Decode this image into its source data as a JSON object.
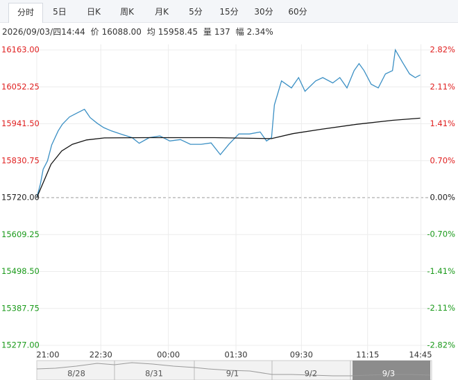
{
  "tabs": [
    "分时",
    "5日",
    "日K",
    "周K",
    "月K",
    "5分",
    "15分",
    "30分",
    "60分"
  ],
  "info": {
    "date": "2026/09/03/四14:44",
    "price_label": "价",
    "price": "16088.00",
    "avg_label": "均",
    "avg": "15958.45",
    "volume_label": "量",
    "volume": "137",
    "range_label": "幅",
    "range": "2.34%"
  },
  "navigator": {
    "dates": [
      "8/28",
      "8/31",
      "9/1",
      "9/2",
      "9/3"
    ]
  },
  "chart_data": {
    "type": "line",
    "grid": true,
    "up_color": "#e02020",
    "down_color": "#1a9a1a",
    "flat_color": "#222",
    "ylim": [
      15277,
      16163
    ],
    "yticks": [
      {
        "value": 16163,
        "label": "16163.00"
      },
      {
        "value": 16052.25,
        "label": "16052.25"
      },
      {
        "value": 15941.5,
        "label": "15941.50"
      },
      {
        "value": 15830.75,
        "label": "15830.75"
      },
      {
        "value": 15720,
        "label": "15720.00"
      },
      {
        "value": 15609.25,
        "label": "15609.25"
      },
      {
        "value": 15498.5,
        "label": "15498.50"
      },
      {
        "value": 15387.75,
        "label": "15387.75"
      },
      {
        "value": 15277,
        "label": "15277.00"
      }
    ],
    "y2lim": [
      -2.82,
      2.82
    ],
    "y2ticks": [
      {
        "value": 2.82,
        "label": "2.82%"
      },
      {
        "value": 2.11,
        "label": "2.11%"
      },
      {
        "value": 1.41,
        "label": "1.41%"
      },
      {
        "value": 0.7,
        "label": "0.70%"
      },
      {
        "value": 0,
        "label": "0.00%"
      },
      {
        "value": -0.7,
        "label": "-0.70%"
      },
      {
        "value": -1.41,
        "label": "-1.41%"
      },
      {
        "value": -2.11,
        "label": "-2.11%"
      },
      {
        "value": -2.82,
        "label": "-2.82%"
      }
    ],
    "xlim": [
      0,
      555
    ],
    "xticks": [
      {
        "value": 0,
        "label": "21:00"
      },
      {
        "value": 90,
        "label": "22:30"
      },
      {
        "value": 185,
        "label": "00:00"
      },
      {
        "value": 280,
        "label": "01:30"
      },
      {
        "value": 372,
        "label": "09:30"
      },
      {
        "value": 465,
        "label": "11:15"
      },
      {
        "value": 540,
        "label": "14:45"
      }
    ],
    "series": [
      {
        "name": "价",
        "color": "#3a8fc4",
        "x": [
          0,
          5,
          9,
          15,
          21,
          30,
          36,
          46,
          55,
          67,
          75,
          85,
          94,
          105,
          119,
          134,
          144,
          158,
          173,
          187,
          202,
          216,
          231,
          245,
          258,
          270,
          284,
          299,
          314,
          323,
          330,
          334,
          344,
          358,
          368,
          377,
          392,
          402,
          416,
          426,
          436,
          446,
          453,
          460,
          470,
          480,
          490,
          500,
          504,
          514,
          524,
          532,
          539
        ],
        "values": [
          15720,
          15760,
          15805,
          15830,
          15878,
          15920,
          15940,
          15962,
          15972,
          15985,
          15960,
          15943,
          15930,
          15920,
          15910,
          15900,
          15883,
          15900,
          15905,
          15890,
          15894,
          15880,
          15880,
          15884,
          15849,
          15880,
          15911,
          15911,
          15917,
          15890,
          15900,
          15998,
          16070,
          16049,
          16080,
          16039,
          16070,
          16080,
          16064,
          16080,
          16049,
          16101,
          16122,
          16101,
          16060,
          16049,
          16091,
          16101,
          16163,
          16126,
          16091,
          16080,
          16088
        ]
      },
      {
        "name": "均",
        "color": "#111",
        "x": [
          0,
          10,
          20,
          35,
          50,
          70,
          95,
          150,
          250,
          330,
          360,
          400,
          450,
          500,
          539
        ],
        "values": [
          15720,
          15770,
          15820,
          15860,
          15880,
          15893,
          15899,
          15900,
          15900,
          15897,
          15912,
          15925,
          15940,
          15952,
          15958.45
        ]
      }
    ]
  }
}
